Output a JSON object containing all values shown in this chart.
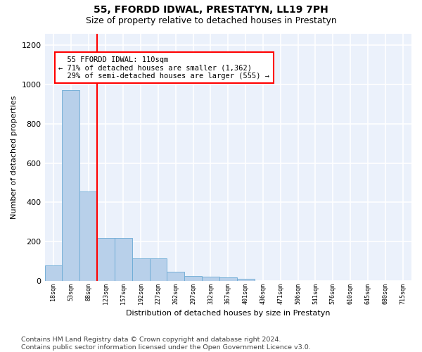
{
  "title": "55, FFORDD IDWAL, PRESTATYN, LL19 7PH",
  "subtitle": "Size of property relative to detached houses in Prestatyn",
  "xlabel": "Distribution of detached houses by size in Prestatyn",
  "ylabel": "Number of detached properties",
  "bar_values": [
    80,
    970,
    455,
    220,
    220,
    115,
    115,
    48,
    25,
    22,
    18,
    12,
    0,
    0,
    0,
    0,
    0,
    0,
    0,
    0,
    0
  ],
  "bar_labels": [
    "18sqm",
    "53sqm",
    "88sqm",
    "123sqm",
    "157sqm",
    "192sqm",
    "227sqm",
    "262sqm",
    "297sqm",
    "332sqm",
    "367sqm",
    "401sqm",
    "436sqm",
    "471sqm",
    "506sqm",
    "541sqm",
    "576sqm",
    "610sqm",
    "645sqm",
    "680sqm",
    "715sqm"
  ],
  "bar_color": "#B8D0EA",
  "bar_edge_color": "#6AAAD4",
  "background_color": "#EBF1FB",
  "grid_color": "#FFFFFF",
  "red_line_x": 2.5,
  "annotation_box_text": "  55 FFORDD IDWAL: 110sqm\n← 71% of detached houses are smaller (1,362)\n  29% of semi-detached houses are larger (555) →",
  "ylim": [
    0,
    1260
  ],
  "yticks": [
    0,
    200,
    400,
    600,
    800,
    1000,
    1200
  ],
  "footer_text": "Contains HM Land Registry data © Crown copyright and database right 2024.\nContains public sector information licensed under the Open Government Licence v3.0.",
  "title_fontsize": 10,
  "subtitle_fontsize": 9,
  "annot_fontsize": 7.5,
  "footer_fontsize": 6.8,
  "xlabel_fontsize": 8,
  "ylabel_fontsize": 8
}
